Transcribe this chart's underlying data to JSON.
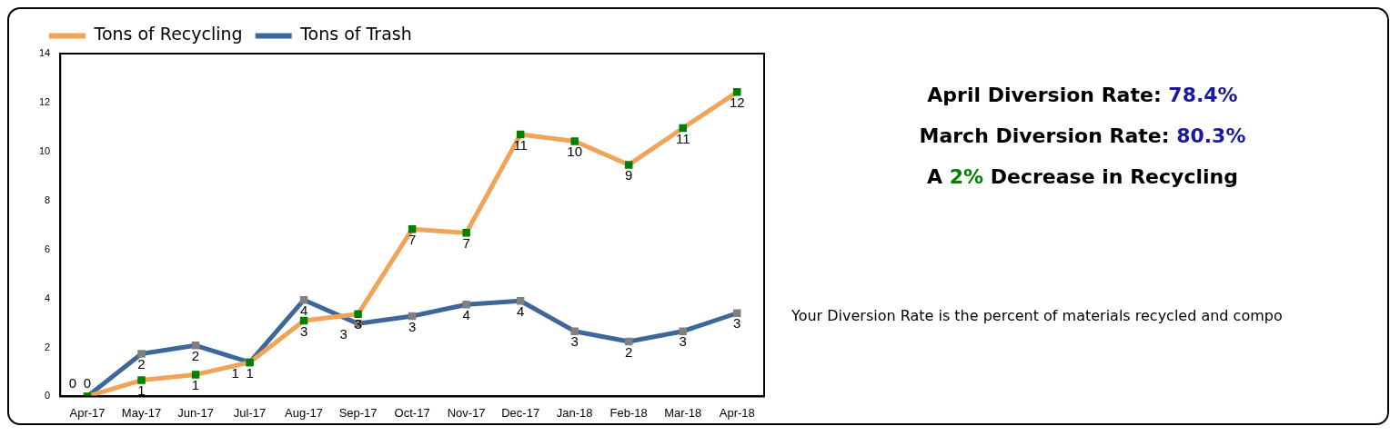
{
  "chart_data": {
    "type": "line",
    "categories": [
      "Apr-17",
      "May-17",
      "Jun-17",
      "Jul-17",
      "Aug-17",
      "Sep-17",
      "Oct-17",
      "Nov-17",
      "Dec-17",
      "Jan-18",
      "Feb-18",
      "Mar-18",
      "Apr-18"
    ],
    "series": [
      {
        "name": "Tons of Recycling",
        "color": "#f0a458",
        "colors": [
          "#008000",
          "#008000",
          "#008000",
          "#008000",
          "#008000",
          "#008000",
          "#008000",
          "#008000",
          "#008000",
          "#008000",
          "#008000",
          "#008000",
          "#008000"
        ],
        "values": [
          0,
          0.66,
          0.89,
          1.39,
          3.09,
          3.36,
          6.83,
          6.68,
          10.7,
          10.42,
          9.46,
          10.96,
          12.43
        ],
        "value_labels": [
          "0",
          "1",
          "1",
          "1",
          "3",
          "3",
          "7",
          "7",
          "11",
          "10",
          "9",
          "11",
          "12"
        ]
      },
      {
        "name": "Tons of Trash",
        "color": "#3d6699",
        "colors": [
          "#808080",
          "#808080",
          "#808080",
          "#808080",
          "#808080",
          "#808080",
          "#808080",
          "#808080",
          "#808080",
          "#808080",
          "#808080",
          "#808080",
          "#808080"
        ],
        "values": [
          0,
          1.74,
          2.08,
          1.39,
          3.94,
          2.97,
          3.28,
          3.75,
          3.9,
          2.66,
          2.24,
          2.66,
          3.4
        ],
        "value_labels": [
          "0",
          "2",
          "2",
          "1",
          "4",
          "3",
          "3",
          "4",
          "4",
          "3",
          "2",
          "3",
          "3"
        ]
      }
    ],
    "ylim": [
      0,
      14
    ],
    "yticks": [
      0,
      2,
      4,
      6,
      8,
      10,
      12,
      14
    ],
    "grid": false,
    "legend": "top left",
    "marker": "square",
    "line_style": "solid",
    "annotations": [
      "April Diversion Rate: 78.4%",
      "March Diversion Rate: 80.3%",
      "A 2% Decrease in Recycling",
      "Your Diversion Rate is the percent of materials recycled and compo"
    ]
  }
}
